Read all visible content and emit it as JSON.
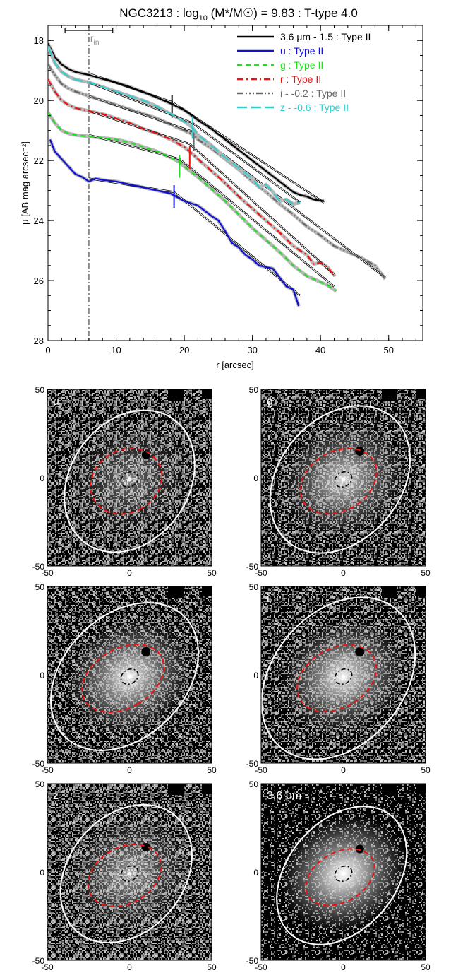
{
  "chart_data": {
    "type": "line",
    "title": "NGC3213 : log10 (M*/M☉) = 9.83 : T-type 4.0",
    "title_main": "NGC3213 : log",
    "title_sub": "10",
    "title_rest": " (M*/M☉) = 9.83 : T-type 4.0",
    "xlabel": "r [arcsec]",
    "ylabel": "μ [AB mag arcsec⁻²]",
    "xlim": [
      0,
      55
    ],
    "ylim": [
      28,
      17.5
    ],
    "x_ticks": [
      "0",
      "10",
      "20",
      "30",
      "40",
      "50"
    ],
    "y_ticks": [
      "18",
      "20",
      "22",
      "24",
      "26",
      "28"
    ],
    "rin_value": 6,
    "rin_label": "r",
    "rin_sub": "in",
    "rin_bar": [
      2.5,
      9.5
    ],
    "legend_position": "top-right",
    "series": [
      {
        "name": "3.6 μm - 1.5 : Type II",
        "color": "#000000",
        "dash": "solid",
        "x": [
          0,
          1,
          2,
          3,
          4,
          6,
          8,
          10,
          12,
          14,
          16,
          18,
          20,
          22,
          24,
          26,
          28,
          30,
          32,
          34,
          36,
          37,
          38,
          39,
          40.5
        ],
        "y": [
          18.1,
          18.55,
          18.8,
          18.95,
          19.05,
          19.15,
          19.28,
          19.4,
          19.55,
          19.72,
          19.9,
          20.1,
          20.32,
          20.65,
          20.95,
          21.3,
          21.65,
          22.0,
          22.35,
          22.7,
          23.05,
          23.15,
          23.2,
          23.3,
          23.35
        ],
        "fit_x": [
          6,
          18.2,
          40.5
        ],
        "fit_y": [
          19.1,
          20.05,
          23.4
        ],
        "break_x": 18.2,
        "break_y": 20.2
      },
      {
        "name": "u : Type II",
        "color": "#1010d0",
        "dash": "solid",
        "x": [
          0.3,
          1,
          2,
          3,
          4,
          5,
          6,
          7,
          8,
          10,
          12,
          14,
          16,
          18,
          20,
          22,
          24,
          25,
          26,
          27,
          28,
          29,
          30,
          31,
          32,
          33,
          34,
          35,
          36,
          36.8
        ],
        "y": [
          21.3,
          21.7,
          21.95,
          22.2,
          22.45,
          22.55,
          22.7,
          22.6,
          22.65,
          22.7,
          22.8,
          22.9,
          23.0,
          23.1,
          23.35,
          23.5,
          23.85,
          24.0,
          24.35,
          24.75,
          24.9,
          25.15,
          25.3,
          25.5,
          25.55,
          25.6,
          25.9,
          26.2,
          26.3,
          26.85
        ],
        "fit_x": [
          6,
          18.5,
          37
        ],
        "fit_y": [
          22.6,
          23.05,
          26.5
        ],
        "break_x": 18.5,
        "break_y": 23.2
      },
      {
        "name": "g : Type II",
        "color": "#22dd22",
        "dash": "dashed",
        "x": [
          0,
          1,
          2,
          3,
          4,
          6,
          8,
          10,
          12,
          14,
          16,
          18,
          19.3,
          20,
          22,
          24,
          26,
          28,
          30,
          32,
          34,
          36,
          38,
          40,
          41,
          42.3
        ],
        "y": [
          20.4,
          20.75,
          21.0,
          21.1,
          21.15,
          21.2,
          21.25,
          21.3,
          21.4,
          21.55,
          21.7,
          21.9,
          22.05,
          22.2,
          22.55,
          22.95,
          23.35,
          23.8,
          24.25,
          24.65,
          25.05,
          25.5,
          25.85,
          26.05,
          26.15,
          26.35
        ],
        "fit_x": [
          6,
          19.3,
          42
        ],
        "fit_y": [
          21.15,
          21.95,
          26.2
        ],
        "break_x": 19.3,
        "break_y": 22.2
      },
      {
        "name": "r : Type II",
        "color": "#ee1111",
        "dash": "dashdot",
        "x": [
          0,
          1,
          2,
          3,
          4,
          6,
          8,
          10,
          12,
          14,
          16,
          18,
          20,
          20.8,
          22,
          24,
          26,
          28,
          30,
          32,
          34,
          36,
          38,
          39,
          40,
          41,
          42.1
        ],
        "y": [
          19.3,
          19.7,
          20.0,
          20.15,
          20.25,
          20.35,
          20.45,
          20.6,
          20.75,
          20.95,
          21.1,
          21.3,
          21.55,
          21.7,
          21.95,
          22.35,
          22.75,
          23.2,
          23.6,
          24.0,
          24.4,
          24.85,
          25.15,
          25.45,
          25.4,
          25.55,
          25.85
        ],
        "fit_x": [
          6,
          20.8,
          42
        ],
        "fit_y": [
          20.35,
          21.45,
          25.8
        ],
        "break_x": 20.8,
        "break_y": 21.9
      },
      {
        "name": "i - -0.2 : Type II",
        "color": "#666666",
        "dash": "dashdotdotdot",
        "x": [
          0,
          1,
          2,
          3,
          4,
          6,
          8,
          10,
          12,
          14,
          16,
          18,
          20,
          21.4,
          22,
          24,
          26,
          28,
          30,
          32,
          34,
          36,
          38,
          40,
          42,
          44,
          46,
          48,
          49.5
        ],
        "y": [
          18.8,
          19.15,
          19.45,
          19.6,
          19.7,
          19.85,
          20.0,
          20.15,
          20.3,
          20.45,
          20.6,
          20.8,
          21.0,
          21.15,
          21.3,
          21.6,
          21.95,
          22.3,
          22.7,
          23.05,
          23.45,
          23.8,
          24.2,
          24.5,
          24.85,
          25.05,
          25.25,
          25.5,
          25.95
        ],
        "fit_x": [
          6,
          21.4,
          49.5
        ],
        "fit_y": [
          19.85,
          21.05,
          25.9
        ],
        "break_x": 21.4,
        "break_y": 21.3
      },
      {
        "name": "z - -0.6 : Type II",
        "color": "#33cccc",
        "dash": "longdash",
        "x": [
          0,
          1,
          2,
          3,
          4,
          6,
          8,
          10,
          12,
          14,
          16,
          18,
          20,
          21.2,
          22,
          24,
          26,
          28,
          30,
          31,
          32,
          33,
          34,
          35,
          36,
          37
        ],
        "y": [
          18.2,
          18.75,
          19.05,
          19.2,
          19.3,
          19.4,
          19.55,
          19.7,
          19.85,
          20.0,
          20.2,
          20.45,
          20.7,
          20.9,
          21.15,
          21.5,
          21.9,
          22.25,
          22.6,
          22.9,
          22.8,
          23.05,
          23.35,
          23.3,
          23.45,
          23.4
        ],
        "fit_x": [
          6,
          21.2,
          37
        ],
        "fit_y": [
          19.4,
          20.75,
          23.4
        ],
        "break_x": 21.2,
        "break_y": 20.9
      }
    ]
  },
  "panels": [
    {
      "label": "u",
      "x_ticks": [
        "-50",
        "0",
        "50"
      ],
      "y_ticks": [
        "50",
        "0",
        "-50"
      ],
      "extent": [
        -50,
        50
      ],
      "outer": {
        "rx": 36,
        "ry": 43,
        "angle": 35,
        "cx": 0,
        "cy": -2
      },
      "inner": {
        "rx": 19,
        "ry": 21,
        "angle": 60,
        "cx": -2,
        "cy": -2
      },
      "core": {
        "rx": 5.5,
        "ry": 4,
        "cx": 0,
        "cy": -1
      },
      "star_x": 10,
      "star_y": 13,
      "star_r": 2.6,
      "glow": 0.35,
      "noise": 0.55
    },
    {
      "label": "g",
      "x_ticks": [
        "-50",
        "0",
        "50"
      ],
      "y_ticks": [
        "50",
        "0",
        "-50"
      ],
      "extent": [
        -50,
        50
      ],
      "outer": {
        "rx": 37,
        "ry": 46,
        "angle": 40,
        "cx": -2,
        "cy": -1
      },
      "inner": {
        "rx": 18,
        "ry": 23,
        "angle": 60,
        "cx": -3,
        "cy": -2
      },
      "core": {
        "rx": 5.5,
        "ry": 4,
        "cx": 0,
        "cy": -1
      },
      "star_x": 10,
      "star_y": 15,
      "star_r": 2.8,
      "glow": 0.65,
      "noise": 0.5
    },
    {
      "label": "r",
      "x_ticks": [
        "-50",
        "0",
        "50"
      ],
      "y_ticks": [
        "50",
        "0",
        "-50"
      ],
      "extent": [
        -50,
        50
      ],
      "outer": {
        "rx": 37,
        "ry": 48,
        "angle": 45,
        "cx": -3,
        "cy": -1
      },
      "inner": {
        "rx": 18,
        "ry": 25,
        "angle": 60,
        "cx": -4,
        "cy": -2
      },
      "core": {
        "rx": 5.5,
        "ry": 4,
        "cx": 0,
        "cy": -1
      },
      "star_x": 10,
      "star_y": 13,
      "star_r": 2.8,
      "glow": 0.75,
      "noise": 0.5
    },
    {
      "label": "i",
      "x_ticks": [
        "-50",
        "0",
        "50"
      ],
      "y_ticks": [
        "50",
        "0",
        "-50"
      ],
      "extent": [
        -50,
        50
      ],
      "outer": {
        "rx": 40,
        "ry": 51,
        "angle": 40,
        "cx": -3,
        "cy": -2
      },
      "inner": {
        "rx": 18,
        "ry": 24,
        "angle": 60,
        "cx": -4,
        "cy": -2
      },
      "core": {
        "rx": 5.5,
        "ry": 4,
        "cx": 0,
        "cy": -1
      },
      "star_x": 10,
      "star_y": 13,
      "star_r": 2.8,
      "glow": 0.75,
      "noise": 0.5
    },
    {
      "label": "z",
      "x_ticks": [
        "-50",
        "0",
        "50"
      ],
      "y_ticks": [
        "50",
        "0",
        "-50"
      ],
      "extent": [
        -50,
        50
      ],
      "outer": {
        "rx": 35,
        "ry": 43,
        "angle": 40,
        "cx": -2,
        "cy": -1
      },
      "inner": {
        "rx": 17,
        "ry": 22,
        "angle": 60,
        "cx": -3,
        "cy": -2
      },
      "core": {
        "rx": 5.5,
        "ry": 4,
        "cx": 0,
        "cy": -1
      },
      "star_x": 10,
      "star_y": 14,
      "star_r": 2.6,
      "glow": 0.5,
      "noise": 0.55
    },
    {
      "label": "3.6 μm",
      "x_ticks": [
        "-50",
        "0",
        "50"
      ],
      "y_ticks": [
        "50",
        "0",
        "-50"
      ],
      "extent": [
        -50,
        50
      ],
      "outer": {
        "rx": 33,
        "ry": 44,
        "angle": 40,
        "cx": -1,
        "cy": -2
      },
      "inner": {
        "rx": 15,
        "ry": 21,
        "angle": 60,
        "cx": -2,
        "cy": -3
      },
      "core": {
        "rx": 5.5,
        "ry": 4,
        "cx": 0,
        "cy": -1
      },
      "star_x": 10,
      "star_y": 13,
      "star_r": 2.6,
      "glow": 0.85,
      "noise": 0.25
    }
  ]
}
